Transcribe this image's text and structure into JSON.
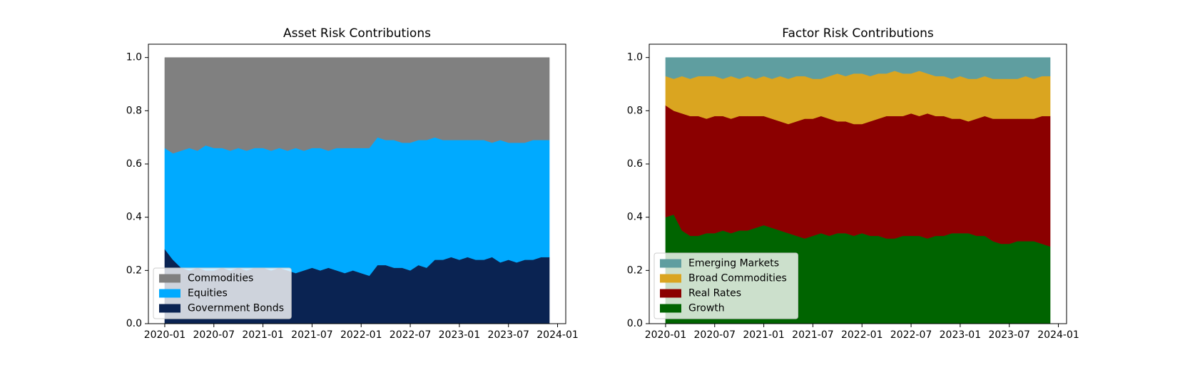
{
  "chart_data": [
    {
      "type": "stacked-area",
      "title": "Asset Risk Contributions",
      "x": [
        "2020-01",
        "2020-02",
        "2020-03",
        "2020-04",
        "2020-05",
        "2020-06",
        "2020-07",
        "2020-08",
        "2020-09",
        "2020-10",
        "2020-11",
        "2020-12",
        "2021-01",
        "2021-02",
        "2021-03",
        "2021-04",
        "2021-05",
        "2021-06",
        "2021-07",
        "2021-08",
        "2021-09",
        "2021-10",
        "2021-11",
        "2021-12",
        "2022-01",
        "2022-02",
        "2022-03",
        "2022-04",
        "2022-05",
        "2022-06",
        "2022-07",
        "2022-08",
        "2022-09",
        "2022-10",
        "2022-11",
        "2022-12",
        "2023-01",
        "2023-02",
        "2023-03",
        "2023-04",
        "2023-05",
        "2023-06",
        "2023-07",
        "2023-08",
        "2023-09",
        "2023-10",
        "2023-11",
        "2023-12"
      ],
      "series": [
        {
          "name": "Government Bonds",
          "color": "#0a2352",
          "values": [
            0.28,
            0.24,
            0.21,
            0.2,
            0.21,
            0.2,
            0.2,
            0.21,
            0.2,
            0.21,
            0.2,
            0.21,
            0.21,
            0.2,
            0.21,
            0.2,
            0.19,
            0.2,
            0.21,
            0.2,
            0.21,
            0.2,
            0.19,
            0.2,
            0.19,
            0.18,
            0.22,
            0.22,
            0.21,
            0.21,
            0.2,
            0.22,
            0.21,
            0.24,
            0.24,
            0.25,
            0.24,
            0.25,
            0.24,
            0.24,
            0.25,
            0.23,
            0.24,
            0.23,
            0.24,
            0.24,
            0.25,
            0.25
          ]
        },
        {
          "name": "Equities",
          "color": "#00aaff",
          "values": [
            0.38,
            0.4,
            0.44,
            0.46,
            0.44,
            0.47,
            0.46,
            0.45,
            0.45,
            0.45,
            0.45,
            0.45,
            0.45,
            0.45,
            0.45,
            0.45,
            0.47,
            0.45,
            0.45,
            0.46,
            0.44,
            0.46,
            0.47,
            0.46,
            0.47,
            0.48,
            0.48,
            0.47,
            0.48,
            0.47,
            0.48,
            0.47,
            0.48,
            0.46,
            0.45,
            0.44,
            0.45,
            0.44,
            0.45,
            0.45,
            0.43,
            0.46,
            0.44,
            0.45,
            0.44,
            0.45,
            0.44,
            0.44
          ]
        },
        {
          "name": "Commodities",
          "color": "#808080",
          "values": [
            0.34,
            0.36,
            0.35,
            0.34,
            0.35,
            0.33,
            0.34,
            0.34,
            0.35,
            0.34,
            0.35,
            0.34,
            0.34,
            0.35,
            0.34,
            0.35,
            0.34,
            0.35,
            0.34,
            0.34,
            0.35,
            0.34,
            0.34,
            0.34,
            0.34,
            0.34,
            0.3,
            0.31,
            0.31,
            0.32,
            0.32,
            0.31,
            0.31,
            0.3,
            0.31,
            0.31,
            0.31,
            0.31,
            0.31,
            0.31,
            0.32,
            0.31,
            0.32,
            0.32,
            0.32,
            0.31,
            0.31,
            0.31
          ]
        }
      ],
      "xlim": [
        "2019-11",
        "2024-02"
      ],
      "ylim": [
        0,
        1.05
      ],
      "xticks": [
        "2020-01",
        "2020-07",
        "2021-01",
        "2021-07",
        "2022-01",
        "2022-07",
        "2023-01",
        "2023-07",
        "2024-01"
      ],
      "yticks": [
        {
          "value": 0,
          "label": "0.0"
        },
        {
          "value": 0.2,
          "label": "0.2"
        },
        {
          "value": 0.4,
          "label": "0.4"
        },
        {
          "value": 0.6,
          "label": "0.6"
        },
        {
          "value": 0.8,
          "label": "0.8"
        },
        {
          "value": 1.0,
          "label": "1.0"
        }
      ],
      "legend": "lower left"
    },
    {
      "type": "stacked-area",
      "title": "Factor Risk Contributions",
      "x": [
        "2020-01",
        "2020-02",
        "2020-03",
        "2020-04",
        "2020-05",
        "2020-06",
        "2020-07",
        "2020-08",
        "2020-09",
        "2020-10",
        "2020-11",
        "2020-12",
        "2021-01",
        "2021-02",
        "2021-03",
        "2021-04",
        "2021-05",
        "2021-06",
        "2021-07",
        "2021-08",
        "2021-09",
        "2021-10",
        "2021-11",
        "2021-12",
        "2022-01",
        "2022-02",
        "2022-03",
        "2022-04",
        "2022-05",
        "2022-06",
        "2022-07",
        "2022-08",
        "2022-09",
        "2022-10",
        "2022-11",
        "2022-12",
        "2023-01",
        "2023-02",
        "2023-03",
        "2023-04",
        "2023-05",
        "2023-06",
        "2023-07",
        "2023-08",
        "2023-09",
        "2023-10",
        "2023-11",
        "2023-12"
      ],
      "series": [
        {
          "name": "Growth",
          "color": "#006400",
          "values": [
            0.4,
            0.41,
            0.35,
            0.33,
            0.33,
            0.34,
            0.34,
            0.35,
            0.34,
            0.35,
            0.35,
            0.36,
            0.37,
            0.36,
            0.35,
            0.34,
            0.33,
            0.32,
            0.33,
            0.34,
            0.33,
            0.34,
            0.34,
            0.33,
            0.34,
            0.33,
            0.33,
            0.32,
            0.32,
            0.33,
            0.33,
            0.33,
            0.32,
            0.33,
            0.33,
            0.34,
            0.34,
            0.34,
            0.33,
            0.33,
            0.31,
            0.3,
            0.3,
            0.31,
            0.31,
            0.31,
            0.3,
            0.29
          ]
        },
        {
          "name": "Real Rates",
          "color": "#8b0000",
          "values": [
            0.42,
            0.39,
            0.44,
            0.45,
            0.45,
            0.43,
            0.44,
            0.43,
            0.43,
            0.43,
            0.43,
            0.42,
            0.41,
            0.41,
            0.41,
            0.41,
            0.43,
            0.45,
            0.44,
            0.44,
            0.44,
            0.42,
            0.42,
            0.42,
            0.41,
            0.43,
            0.44,
            0.46,
            0.46,
            0.45,
            0.46,
            0.45,
            0.47,
            0.45,
            0.45,
            0.43,
            0.43,
            0.42,
            0.44,
            0.45,
            0.46,
            0.47,
            0.47,
            0.46,
            0.46,
            0.46,
            0.48,
            0.49
          ]
        },
        {
          "name": "Broad Commodities",
          "color": "#daa520",
          "values": [
            0.11,
            0.12,
            0.14,
            0.14,
            0.15,
            0.16,
            0.15,
            0.14,
            0.16,
            0.14,
            0.15,
            0.14,
            0.15,
            0.15,
            0.17,
            0.17,
            0.17,
            0.16,
            0.15,
            0.14,
            0.16,
            0.18,
            0.17,
            0.19,
            0.19,
            0.17,
            0.17,
            0.16,
            0.17,
            0.16,
            0.15,
            0.17,
            0.15,
            0.15,
            0.15,
            0.15,
            0.16,
            0.16,
            0.15,
            0.15,
            0.15,
            0.15,
            0.15,
            0.15,
            0.16,
            0.15,
            0.15,
            0.15
          ]
        },
        {
          "name": "Emerging Markets",
          "color": "#5f9ea0",
          "values": [
            0.07,
            0.08,
            0.07,
            0.08,
            0.07,
            0.07,
            0.07,
            0.08,
            0.07,
            0.08,
            0.07,
            0.08,
            0.07,
            0.08,
            0.07,
            0.08,
            0.07,
            0.07,
            0.08,
            0.08,
            0.07,
            0.06,
            0.07,
            0.06,
            0.06,
            0.07,
            0.06,
            0.06,
            0.05,
            0.06,
            0.06,
            0.05,
            0.06,
            0.07,
            0.07,
            0.08,
            0.07,
            0.08,
            0.08,
            0.07,
            0.08,
            0.08,
            0.08,
            0.08,
            0.07,
            0.08,
            0.07,
            0.07
          ]
        }
      ],
      "xlim": [
        "2019-11",
        "2024-02"
      ],
      "ylim": [
        0,
        1.05
      ],
      "xticks": [
        "2020-01",
        "2020-07",
        "2021-01",
        "2021-07",
        "2022-01",
        "2022-07",
        "2023-01",
        "2023-07",
        "2024-01"
      ],
      "yticks": [
        {
          "value": 0,
          "label": "0.0"
        },
        {
          "value": 0.2,
          "label": "0.2"
        },
        {
          "value": 0.4,
          "label": "0.4"
        },
        {
          "value": 0.6,
          "label": "0.6"
        },
        {
          "value": 0.8,
          "label": "0.8"
        },
        {
          "value": 1.0,
          "label": "1.0"
        }
      ],
      "legend": "lower left"
    }
  ]
}
